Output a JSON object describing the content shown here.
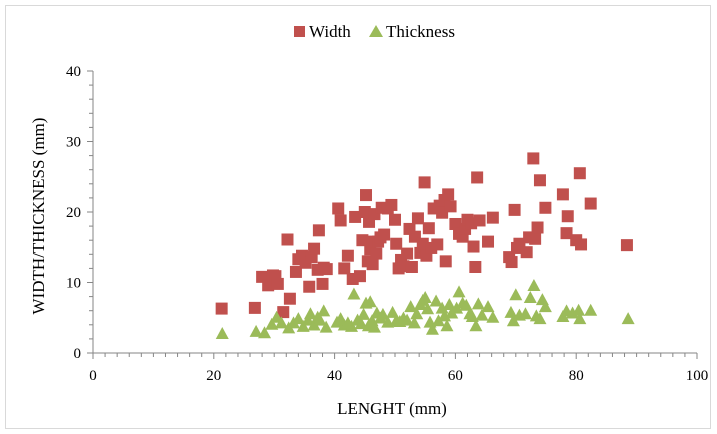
{
  "chart_data": {
    "type": "scatter",
    "title": "",
    "xlabel": "LENGHT (mm)",
    "ylabel": "WIDTH/THICKNESS (mm)",
    "xlim": [
      0,
      100
    ],
    "ylim": [
      0,
      40
    ],
    "x_ticks": [
      0,
      20,
      40,
      60,
      80,
      100
    ],
    "y_ticks": [
      0,
      10,
      20,
      30,
      40
    ],
    "grid": false,
    "legend": "top-center",
    "series": [
      {
        "name": "Width",
        "marker": "square",
        "color": "#c0504d",
        "points": [
          [
            21.3,
            6.3
          ],
          [
            26.8,
            6.4
          ],
          [
            28,
            10.8
          ],
          [
            29,
            9.6
          ],
          [
            29.8,
            11
          ],
          [
            30.2,
            10.9
          ],
          [
            30.6,
            9.8
          ],
          [
            31.5,
            5.8
          ],
          [
            32.2,
            16.1
          ],
          [
            32.6,
            7.7
          ],
          [
            33.6,
            11.5
          ],
          [
            34,
            13.3
          ],
          [
            34.6,
            13.8
          ],
          [
            35.2,
            12.8
          ],
          [
            35.8,
            9.4
          ],
          [
            36.2,
            13.6
          ],
          [
            36.6,
            14.8
          ],
          [
            37.2,
            11.8
          ],
          [
            37.4,
            17.4
          ],
          [
            38,
            9.8
          ],
          [
            38.2,
            12.1
          ],
          [
            38.7,
            11.9
          ],
          [
            40.6,
            20.5
          ],
          [
            41,
            18.8
          ],
          [
            41.6,
            12
          ],
          [
            42.2,
            13.8
          ],
          [
            43,
            10.5
          ],
          [
            43.4,
            19.3
          ],
          [
            44.2,
            10.9
          ],
          [
            44.6,
            16
          ],
          [
            45,
            20
          ],
          [
            45.2,
            22.4
          ],
          [
            45.5,
            13
          ],
          [
            45.7,
            18.6
          ],
          [
            45.9,
            14.7
          ],
          [
            46.2,
            15.8
          ],
          [
            46.3,
            12.6
          ],
          [
            46.6,
            19.7
          ],
          [
            46.9,
            14.1
          ],
          [
            47.2,
            15.8
          ],
          [
            47.6,
            16.4
          ],
          [
            47.8,
            20.6
          ],
          [
            48.2,
            16.8
          ],
          [
            48.8,
            20.5
          ],
          [
            49.4,
            21
          ],
          [
            50,
            18.9
          ],
          [
            50.2,
            15.5
          ],
          [
            50.6,
            12
          ],
          [
            51,
            13.2
          ],
          [
            51.4,
            12.3
          ],
          [
            52,
            14.1
          ],
          [
            52.4,
            17.6
          ],
          [
            52.8,
            12.2
          ],
          [
            53.3,
            16.5
          ],
          [
            53.8,
            19.1
          ],
          [
            54.2,
            14.2
          ],
          [
            54.6,
            15.5
          ],
          [
            54.9,
            24.2
          ],
          [
            55.2,
            13.8
          ],
          [
            55.6,
            17.7
          ],
          [
            56,
            14.9
          ],
          [
            56.4,
            20.5
          ],
          [
            57,
            15.4
          ],
          [
            57.4,
            20.9
          ],
          [
            57.8,
            19.9
          ],
          [
            58.2,
            21.7
          ],
          [
            58.4,
            13
          ],
          [
            58.8,
            22.5
          ],
          [
            59.2,
            20.8
          ],
          [
            60,
            18.3
          ],
          [
            60.6,
            16.9
          ],
          [
            61.2,
            16.5
          ],
          [
            61.6,
            17.6
          ],
          [
            62,
            18.9
          ],
          [
            62.6,
            18.4
          ],
          [
            63,
            15.1
          ],
          [
            63.3,
            12.2
          ],
          [
            63.6,
            24.9
          ],
          [
            64,
            18.8
          ],
          [
            65.4,
            15.8
          ],
          [
            66.2,
            19.2
          ],
          [
            68.9,
            13.6
          ],
          [
            69.3,
            12.9
          ],
          [
            69.8,
            20.3
          ],
          [
            70.2,
            14.9
          ],
          [
            70.6,
            15.5
          ],
          [
            71.8,
            14.3
          ],
          [
            72.2,
            16.4
          ],
          [
            72.9,
            27.6
          ],
          [
            73.2,
            16.2
          ],
          [
            73.6,
            17.8
          ],
          [
            74,
            24.5
          ],
          [
            74.9,
            20.6
          ],
          [
            77.8,
            22.5
          ],
          [
            78.4,
            17
          ],
          [
            78.6,
            19.4
          ],
          [
            80,
            16
          ],
          [
            80.6,
            25.5
          ],
          [
            80.8,
            15.4
          ],
          [
            82.4,
            21.2
          ],
          [
            88.4,
            15.3
          ]
        ]
      },
      {
        "name": "Thickness",
        "marker": "triangle",
        "color": "#9bbb59",
        "points": [
          [
            21.4,
            2.7
          ],
          [
            27,
            3
          ],
          [
            28.4,
            2.8
          ],
          [
            29.6,
            4
          ],
          [
            30.4,
            5
          ],
          [
            31.2,
            4.2
          ],
          [
            32.4,
            3.5
          ],
          [
            33.2,
            4.2
          ],
          [
            34,
            4.8
          ],
          [
            34.8,
            3.7
          ],
          [
            35.6,
            4.6
          ],
          [
            36,
            5.5
          ],
          [
            36.6,
            3.9
          ],
          [
            37.2,
            5
          ],
          [
            37.6,
            4.6
          ],
          [
            38.2,
            5.9
          ],
          [
            38.6,
            3.6
          ],
          [
            40.4,
            4.3
          ],
          [
            41,
            4.8
          ],
          [
            41.6,
            3.9
          ],
          [
            42.2,
            4.2
          ],
          [
            42.8,
            3.7
          ],
          [
            43.2,
            8.3
          ],
          [
            43.8,
            4.6
          ],
          [
            44.4,
            4.1
          ],
          [
            44.8,
            5.4
          ],
          [
            45.2,
            7
          ],
          [
            45.6,
            3.8
          ],
          [
            45.9,
            7.2
          ],
          [
            46.2,
            4.5
          ],
          [
            46.6,
            3.6
          ],
          [
            47,
            5.6
          ],
          [
            47.6,
            4.9
          ],
          [
            48,
            5.4
          ],
          [
            48.8,
            4.3
          ],
          [
            49.6,
            5.7
          ],
          [
            50.2,
            4.5
          ],
          [
            50.8,
            4.4
          ],
          [
            51.4,
            4.9
          ],
          [
            52,
            4.6
          ],
          [
            52.6,
            6.5
          ],
          [
            53.2,
            4.2
          ],
          [
            53.6,
            5.5
          ],
          [
            54.2,
            6.8
          ],
          [
            54.6,
            7.4
          ],
          [
            55,
            7.8
          ],
          [
            55.4,
            6.2
          ],
          [
            55.8,
            4.3
          ],
          [
            56.2,
            3.3
          ],
          [
            56.8,
            7.3
          ],
          [
            57.2,
            4.5
          ],
          [
            57.8,
            6.3
          ],
          [
            58.2,
            5.2
          ],
          [
            58.6,
            3.8
          ],
          [
            59,
            6.8
          ],
          [
            59.4,
            5.6
          ],
          [
            60.2,
            6.3
          ],
          [
            60.6,
            8.6
          ],
          [
            61.2,
            7
          ],
          [
            61.8,
            6.7
          ],
          [
            62.4,
            5.5
          ],
          [
            62.8,
            5.1
          ],
          [
            63.4,
            3.8
          ],
          [
            63.8,
            6.9
          ],
          [
            64.4,
            5.3
          ],
          [
            65.4,
            6.5
          ],
          [
            66.2,
            5
          ],
          [
            69.2,
            5.7
          ],
          [
            69.6,
            4.5
          ],
          [
            70,
            8.2
          ],
          [
            70.6,
            5.3
          ],
          [
            71.6,
            5.5
          ],
          [
            72.4,
            7.8
          ],
          [
            73,
            9.5
          ],
          [
            73.4,
            5.2
          ],
          [
            74,
            4.8
          ],
          [
            74.4,
            7.5
          ],
          [
            74.9,
            6.5
          ],
          [
            77.8,
            5.1
          ],
          [
            78.4,
            5.9
          ],
          [
            79.4,
            5.6
          ],
          [
            80.4,
            6
          ],
          [
            80.6,
            4.8
          ],
          [
            82.4,
            6
          ],
          [
            88.6,
            4.8
          ]
        ]
      }
    ]
  }
}
